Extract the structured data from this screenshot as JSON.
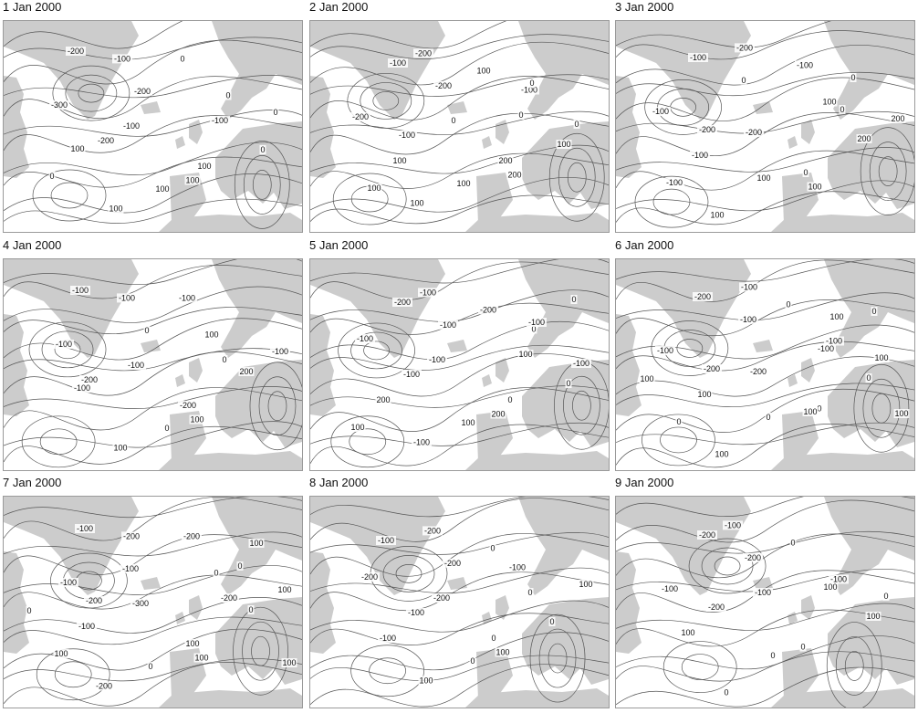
{
  "colors": {
    "land": "#cccccc",
    "contour": "#555555",
    "frame": "#9a9a9a"
  },
  "panels": [
    {
      "title": "1 Jan 2000",
      "labels": [
        "-200",
        "-100",
        "-300",
        "-200",
        "-100",
        "0",
        "-200",
        "0",
        "100",
        "-100",
        "100",
        "0",
        "100",
        "0",
        "100",
        "100",
        "0"
      ]
    },
    {
      "title": "2 Jan 2000",
      "labels": [
        "-100",
        "-200",
        "-200",
        "-100",
        "0",
        "100",
        "-200",
        "-100",
        "100",
        "0",
        "100",
        "100",
        "200",
        "0",
        "100",
        "200",
        "100",
        "0"
      ]
    },
    {
      "title": "3 Jan 2000",
      "labels": [
        "-100",
        "-200",
        "-100",
        "-200",
        "-200",
        "-100",
        "0",
        "100",
        "-100",
        "0",
        "100",
        "200",
        "100",
        "200",
        "100",
        "0",
        "-100",
        "0"
      ]
    },
    {
      "title": "4 Jan 2000",
      "labels": [
        "-100",
        "-100",
        "-100",
        "-200",
        "-100",
        "-100",
        "0",
        "100",
        "-100",
        "0",
        "100",
        "200",
        "100",
        "-100",
        "0",
        "-200"
      ]
    },
    {
      "title": "5 Jan 2000",
      "labels": [
        "-200",
        "-100",
        "-100",
        "-100",
        "-100",
        "-200",
        "-100",
        "0",
        "200",
        "100",
        "-100",
        "0",
        "200",
        "-100",
        "100",
        "0",
        "100",
        "-100",
        "0"
      ]
    },
    {
      "title": "6 Jan 2000",
      "labels": [
        "-200",
        "-100",
        "-100",
        "-200",
        "-200",
        "0",
        "-100",
        "-100",
        "100",
        "-100",
        "100",
        "0",
        "0",
        "100",
        "0",
        "100",
        "0",
        "100",
        "0",
        "100",
        "100"
      ]
    },
    {
      "title": "7 Jan 2000",
      "labels": [
        "-100",
        "-200",
        "-100",
        "-200",
        "-300",
        "-200",
        "-100",
        "0",
        "-100",
        "-200",
        "-200",
        "0",
        "100",
        "100",
        "0",
        "100",
        "100",
        "0",
        "100",
        "0",
        "100"
      ]
    },
    {
      "title": "8 Jan 2000",
      "labels": [
        "-100",
        "-200",
        "-200",
        "-100",
        "-200",
        "0",
        "-200",
        "-100",
        "-100",
        "0",
        "100",
        "0",
        "100",
        "100",
        "0",
        "0"
      ]
    },
    {
      "title": "9 Jan 2000",
      "labels": [
        "-200",
        "-100",
        "-100",
        "-200",
        "-100",
        "0",
        "-200",
        "-100",
        "100",
        "100",
        "0",
        "100",
        "0",
        "0",
        "0"
      ]
    }
  ]
}
